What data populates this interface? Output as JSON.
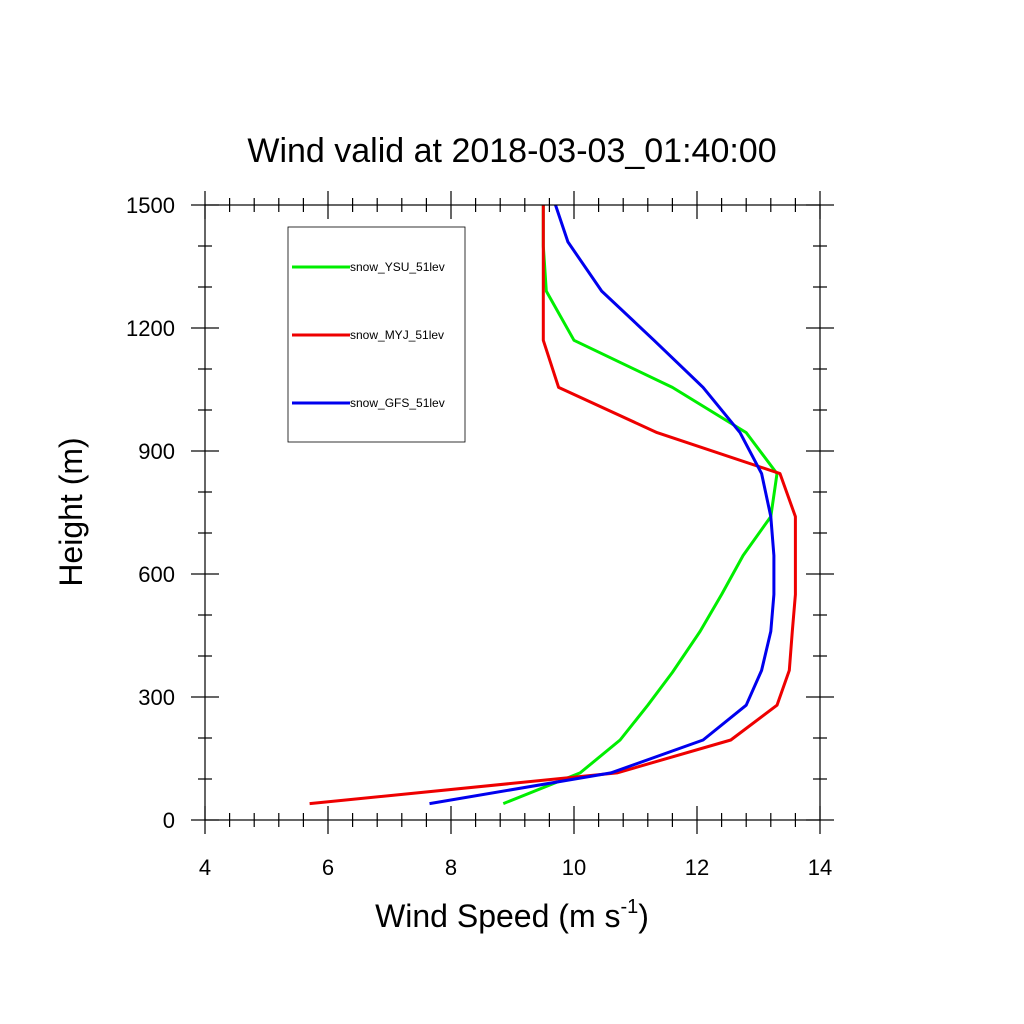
{
  "chart_data": {
    "type": "line",
    "title": "Wind valid at 2018-03-03_01:40:00",
    "xlabel": "Wind Speed (m s",
    "xlabel_sup": "-1",
    "xlabel_close": ")",
    "ylabel": "Height (m)",
    "xlim": [
      4,
      14
    ],
    "ylim": [
      0,
      1500
    ],
    "x_ticks": [
      4,
      6,
      8,
      10,
      12,
      14
    ],
    "y_ticks": [
      0,
      300,
      600,
      900,
      1200,
      1500
    ],
    "x_tick_labels": [
      "4",
      "6",
      "8",
      "10",
      "12",
      "14"
    ],
    "y_tick_labels": [
      "0",
      "300",
      "600",
      "900",
      "1200",
      "1500"
    ],
    "grid": false,
    "legend_placement": "top-left",
    "series": [
      {
        "name": "snow_YSU_51lev",
        "color": "#00ee00",
        "points": [
          [
            8.85,
            40
          ],
          [
            10.1,
            115
          ],
          [
            10.75,
            195
          ],
          [
            11.2,
            280
          ],
          [
            11.6,
            360
          ],
          [
            12.05,
            460
          ],
          [
            12.4,
            550
          ],
          [
            12.75,
            645
          ],
          [
            13.2,
            740
          ],
          [
            13.3,
            845
          ],
          [
            12.8,
            945
          ],
          [
            11.6,
            1055
          ],
          [
            10.0,
            1170
          ],
          [
            9.55,
            1290
          ],
          [
            9.5,
            1400
          ],
          [
            9.5,
            1500
          ]
        ]
      },
      {
        "name": "snow_MYJ_51lev",
        "color": "#ee0000",
        "points": [
          [
            5.7,
            40
          ],
          [
            10.7,
            115
          ],
          [
            12.55,
            195
          ],
          [
            13.3,
            280
          ],
          [
            13.5,
            365
          ],
          [
            13.55,
            460
          ],
          [
            13.6,
            550
          ],
          [
            13.6,
            645
          ],
          [
            13.6,
            740
          ],
          [
            13.35,
            845
          ],
          [
            11.35,
            945
          ],
          [
            9.75,
            1055
          ],
          [
            9.5,
            1170
          ],
          [
            9.5,
            1290
          ],
          [
            9.5,
            1400
          ],
          [
            9.5,
            1500
          ]
        ]
      },
      {
        "name": "snow_GFS_51lev",
        "color": "#0000ee",
        "points": [
          [
            7.65,
            40
          ],
          [
            10.6,
            115
          ],
          [
            12.1,
            195
          ],
          [
            12.8,
            280
          ],
          [
            13.05,
            365
          ],
          [
            13.2,
            460
          ],
          [
            13.25,
            550
          ],
          [
            13.25,
            645
          ],
          [
            13.2,
            740
          ],
          [
            13.05,
            845
          ],
          [
            12.7,
            945
          ],
          [
            12.1,
            1055
          ],
          [
            11.3,
            1170
          ],
          [
            10.45,
            1290
          ],
          [
            9.9,
            1410
          ],
          [
            9.7,
            1500
          ]
        ]
      }
    ]
  }
}
